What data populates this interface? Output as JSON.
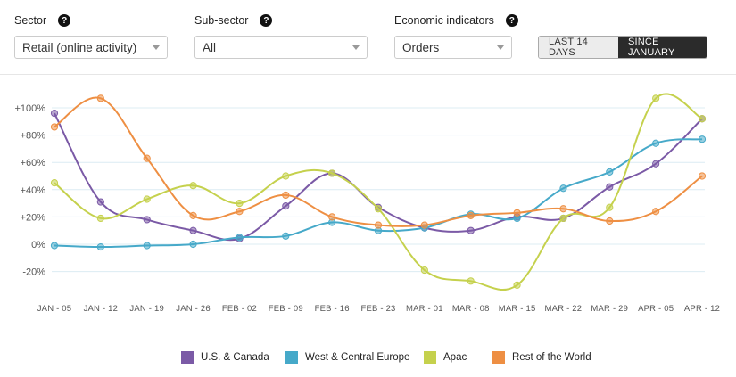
{
  "filters": [
    {
      "label": "Sector",
      "help": "?",
      "value": "Retail (online activity)"
    },
    {
      "label": "Sub-sector",
      "help": "?",
      "value": "All"
    },
    {
      "label": "Economic indicators",
      "help": "?",
      "value": "Orders"
    }
  ],
  "toggle": {
    "options": [
      "LAST 14 DAYS",
      "SINCE JANUARY"
    ],
    "selected": "SINCE JANUARY"
  },
  "chart_data": {
    "type": "line",
    "categories": [
      "JAN - 05",
      "JAN - 12",
      "JAN - 19",
      "JAN - 26",
      "FEB - 02",
      "FEB - 09",
      "FEB - 16",
      "FEB - 23",
      "MAR - 01",
      "MAR - 08",
      "MAR - 15",
      "MAR - 22",
      "MAR - 29",
      "APR - 05",
      "APR - 12"
    ],
    "y_ticks": [
      "+100%",
      "+80%",
      "+60%",
      "+40%",
      "+20%",
      "0%",
      "-20%"
    ],
    "y_tick_values": [
      100,
      80,
      60,
      40,
      20,
      0,
      -20
    ],
    "ylim": [
      -30,
      105
    ],
    "grid": true,
    "legend_position": "bottom",
    "series": [
      {
        "name": "U.S. & Canada",
        "color": "#7b5aa6",
        "values": [
          96,
          31,
          18,
          10,
          4,
          28,
          52,
          27,
          12,
          10,
          20,
          19,
          42,
          59,
          92
        ]
      },
      {
        "name": "West & Central Europe",
        "color": "#46a9c9",
        "values": [
          -1,
          -2,
          -1,
          0,
          5,
          6,
          16,
          10,
          12,
          22,
          19,
          41,
          53,
          74,
          77
        ]
      },
      {
        "name": "Apac",
        "color": "#c5d14d",
        "values": [
          45,
          19,
          33,
          43,
          30,
          50,
          52,
          26,
          -19,
          -27,
          -30,
          19,
          27,
          107,
          92
        ]
      },
      {
        "name": "Rest of the World",
        "color": "#ee8f43",
        "values": [
          86,
          107,
          63,
          21,
          24,
          36,
          20,
          14,
          14,
          21,
          23,
          26,
          17,
          24,
          50
        ]
      }
    ]
  }
}
